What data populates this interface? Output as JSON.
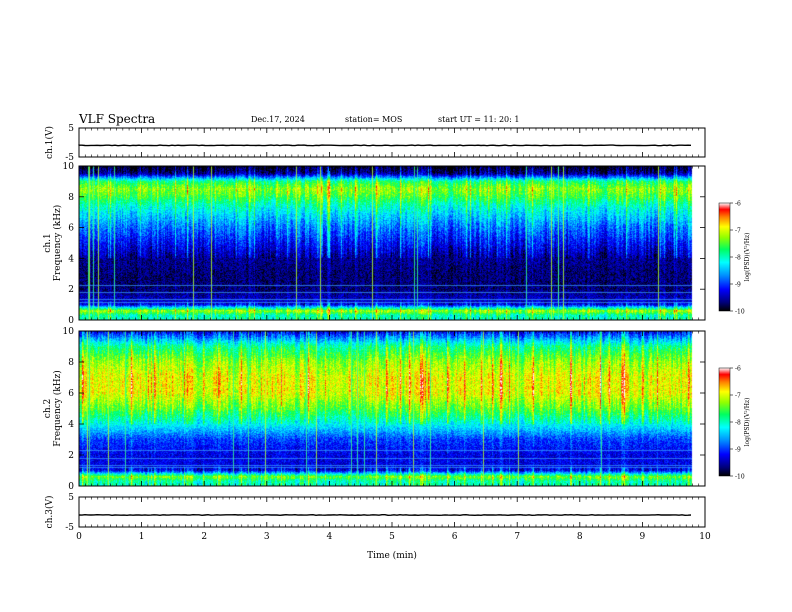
{
  "header": {
    "title": "VLF Spectra",
    "date": "Dec.17, 2024",
    "station": "station= MOS",
    "start_ut": "start  UT  =    11: 20: 1"
  },
  "chart_data": [
    {
      "type": "line",
      "panel": "ch1-waveform",
      "ylabel": "ch.1(V)",
      "ylim": [
        -5,
        5
      ],
      "yticks": [
        "5",
        "-5"
      ],
      "note": "flat trace near -1 V across the whole interval"
    },
    {
      "type": "heatmap",
      "panel": "ch1-spectrogram",
      "ylabel": "ch.1  Frequency (kHz)",
      "xlim": [
        0,
        10
      ],
      "ylim": [
        0,
        10
      ],
      "yticks": [
        "0",
        "2",
        "4",
        "6",
        "8",
        "10"
      ],
      "data_end_min": 9.8,
      "colorbar": {
        "label": "log(PSD)(V²/Hz)",
        "range": [
          -10,
          -6
        ],
        "ticks": [
          "-6",
          "-7",
          "-8",
          "-9",
          "-10"
        ]
      },
      "intensity_profile_by_kHz": [
        [
          0.3,
          -8.0
        ],
        [
          0.6,
          -7.2
        ],
        [
          1.0,
          -9.3
        ],
        [
          1.5,
          -9.5
        ],
        [
          2.0,
          -9.7
        ],
        [
          3.0,
          -9.7
        ],
        [
          4.0,
          -9.6
        ],
        [
          5.0,
          -9.2
        ],
        [
          6.0,
          -8.8
        ],
        [
          7.0,
          -8.3
        ],
        [
          7.5,
          -8.0
        ],
        [
          8.0,
          -7.6
        ],
        [
          8.5,
          -7.3
        ],
        [
          9.0,
          -7.8
        ],
        [
          9.5,
          -9.6
        ],
        [
          10.0,
          -10.0
        ]
      ]
    },
    {
      "type": "heatmap",
      "panel": "ch2-spectrogram",
      "ylabel": "ch.2  Frequency (kHz)",
      "xlim": [
        0,
        10
      ],
      "ylim": [
        0,
        10
      ],
      "yticks": [
        "0",
        "2",
        "4",
        "6",
        "8",
        "10"
      ],
      "data_end_min": 9.8,
      "colorbar": {
        "label": "log(PSD)(V²/Hz)",
        "range": [
          -10,
          -6
        ],
        "ticks": [
          "-6",
          "-7",
          "-8",
          "-9",
          "-10"
        ]
      },
      "intensity_profile_by_kHz": [
        [
          0.3,
          -8.0
        ],
        [
          0.6,
          -7.4
        ],
        [
          1.0,
          -9.3
        ],
        [
          1.5,
          -9.3
        ],
        [
          2.0,
          -9.3
        ],
        [
          3.0,
          -9.0
        ],
        [
          4.0,
          -8.2
        ],
        [
          5.0,
          -7.5
        ],
        [
          6.0,
          -7.0
        ],
        [
          7.0,
          -7.0
        ],
        [
          8.0,
          -7.3
        ],
        [
          9.0,
          -7.9
        ],
        [
          9.5,
          -8.6
        ],
        [
          10.0,
          -9.3
        ]
      ]
    },
    {
      "type": "line",
      "panel": "ch3-waveform",
      "ylabel": "ch.3(V)",
      "ylim": [
        -5,
        5
      ],
      "yticks": [
        "5",
        "-5"
      ],
      "xlabel": "Time  (min)",
      "xticks": [
        "0",
        "1",
        "2",
        "3",
        "4",
        "5",
        "6",
        "7",
        "8",
        "9",
        "10"
      ],
      "note": "flat trace near -1 V across the whole interval"
    }
  ]
}
